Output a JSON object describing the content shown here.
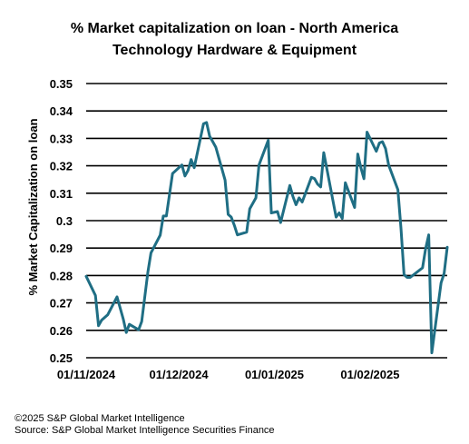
{
  "chart_data": {
    "type": "line",
    "title": "% Market capitalization on loan - North America",
    "subtitle": "Technology Hardware & Equipment",
    "xlabel": "",
    "ylabel": "% Market Capitalization on loan",
    "ylim": [
      0.25,
      0.35
    ],
    "yticks": [
      "0.25",
      "0.26",
      "0.27",
      "0.28",
      "0.29",
      "0.3",
      "0.31",
      "0.32",
      "0.33",
      "0.34",
      "0.35"
    ],
    "xticks": [
      "01/11/2024",
      "01/12/2024",
      "01/01/2025",
      "01/02/2025"
    ],
    "xlim": [
      "2024-11-01",
      "2025-02-26"
    ],
    "grid": true,
    "legend": "none",
    "color": "#1f6e84",
    "series": [
      {
        "x": [
          "2024-11-01",
          "2024-11-04",
          "2024-11-05",
          "2024-11-06",
          "2024-11-07",
          "2024-11-08",
          "2024-11-11",
          "2024-11-12",
          "2024-11-13",
          "2024-11-14",
          "2024-11-15",
          "2024-11-18",
          "2024-11-19",
          "2024-11-20",
          "2024-11-21",
          "2024-11-22",
          "2024-11-25",
          "2024-11-26",
          "2024-11-27",
          "2024-11-29",
          "2024-12-02",
          "2024-12-03",
          "2024-12-04",
          "2024-12-05",
          "2024-12-06",
          "2024-12-09",
          "2024-12-10",
          "2024-12-11",
          "2024-12-12",
          "2024-12-13",
          "2024-12-16",
          "2024-12-17",
          "2024-12-18",
          "2024-12-19",
          "2024-12-20",
          "2024-12-23",
          "2024-12-24",
          "2024-12-26",
          "2024-12-27",
          "2024-12-30",
          "2024-12-31",
          "2025-01-02",
          "2025-01-03",
          "2025-01-06",
          "2025-01-07",
          "2025-01-08",
          "2025-01-09",
          "2025-01-10",
          "2025-01-13",
          "2025-01-14",
          "2025-01-15",
          "2025-01-16",
          "2025-01-17",
          "2025-01-21",
          "2025-01-22",
          "2025-01-23",
          "2025-01-24",
          "2025-01-27",
          "2025-01-28",
          "2025-01-29",
          "2025-01-30",
          "2025-01-31",
          "2025-02-03",
          "2025-02-04",
          "2025-02-05",
          "2025-02-06",
          "2025-02-07",
          "2025-02-10",
          "2025-02-11",
          "2025-02-12",
          "2025-02-13",
          "2025-02-14",
          "2025-02-18",
          "2025-02-19",
          "2025-02-20",
          "2025-02-21",
          "2025-02-24",
          "2025-02-25",
          "2025-02-26"
        ],
        "y": [
          0.2797,
          0.2727,
          0.2617,
          0.2637,
          0.2647,
          0.2657,
          0.2722,
          0.2682,
          0.2642,
          0.2592,
          0.2622,
          0.2602,
          0.2632,
          0.2722,
          0.2812,
          0.2882,
          0.2947,
          0.3017,
          0.3017,
          0.3172,
          0.3203,
          0.3163,
          0.3183,
          0.3223,
          0.3193,
          0.3353,
          0.3358,
          0.3308,
          0.3288,
          0.3268,
          0.3148,
          0.3023,
          0.3013,
          0.2983,
          0.2948,
          0.2958,
          0.3043,
          0.3083,
          0.3203,
          0.3293,
          0.3028,
          0.3033,
          0.2993,
          0.3128,
          0.3088,
          0.3058,
          0.3083,
          0.3068,
          0.3158,
          0.3153,
          0.3133,
          0.3123,
          0.3248,
          0.3013,
          0.3028,
          0.3008,
          0.3138,
          0.3048,
          0.3243,
          0.3193,
          0.3153,
          0.3323,
          0.3253,
          0.3283,
          0.3288,
          0.3263,
          0.3203,
          0.3113,
          0.2973,
          0.2803,
          0.2793,
          0.2793,
          0.2828,
          0.2898,
          0.2948,
          0.2518,
          0.2773,
          0.2808,
          0.2903
        ]
      }
    ]
  },
  "footer": {
    "copyright": "©2025 S&P Global Market Intelligence",
    "source": "Source: S&P Global Market Intelligence Securities Finance"
  }
}
